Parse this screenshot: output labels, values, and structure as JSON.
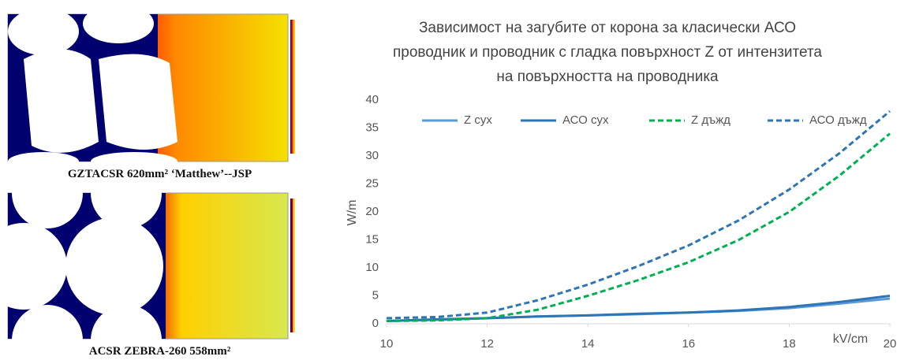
{
  "panels": [
    {
      "caption": "GZTACSR 620mm² ‘Matthew’--JSP"
    },
    {
      "caption": "ACSR ZEBRA-260 558mm²"
    }
  ],
  "chart_data": {
    "type": "line",
    "title": "Зависимост на загубите от корона за класически АСО проводник и проводник с гладка повърхност Z от интензитета на повърхността на проводника",
    "x_label": "kV/cm",
    "y_label": "W/m",
    "x": [
      10,
      11,
      12,
      13,
      14,
      15,
      16,
      17,
      18,
      19,
      20
    ],
    "series": [
      {
        "name": "Z сух",
        "color": "#5b9bd5",
        "dash": false,
        "values": [
          0.5,
          0.7,
          1.0,
          1.3,
          1.5,
          1.7,
          2.0,
          2.3,
          2.8,
          3.6,
          4.5
        ]
      },
      {
        "name": "АСО сух",
        "color": "#2e75b6",
        "dash": false,
        "values": [
          0.5,
          0.8,
          1.0,
          1.3,
          1.5,
          1.8,
          2.0,
          2.4,
          3.0,
          3.9,
          5.0
        ]
      },
      {
        "name": "Z дъжд",
        "color": "#00b050",
        "dash": true,
        "values": [
          0.5,
          0.6,
          1.0,
          2.5,
          5,
          7.8,
          11,
          15,
          20,
          26.5,
          34
        ]
      },
      {
        "name": "АСО дъжд",
        "color": "#2e75b6",
        "dash": true,
        "values": [
          1.0,
          1.2,
          2.0,
          4.2,
          7,
          10.3,
          14,
          18.5,
          24,
          30.5,
          38
        ]
      }
    ],
    "xlim": [
      10,
      20
    ],
    "xticks": [
      10,
      12,
      14,
      16,
      18,
      20
    ],
    "ylim": [
      0,
      40
    ],
    "yticks": [
      0,
      5,
      10,
      15,
      20,
      25,
      30,
      35,
      40
    ],
    "legend": "top",
    "grid": false
  }
}
